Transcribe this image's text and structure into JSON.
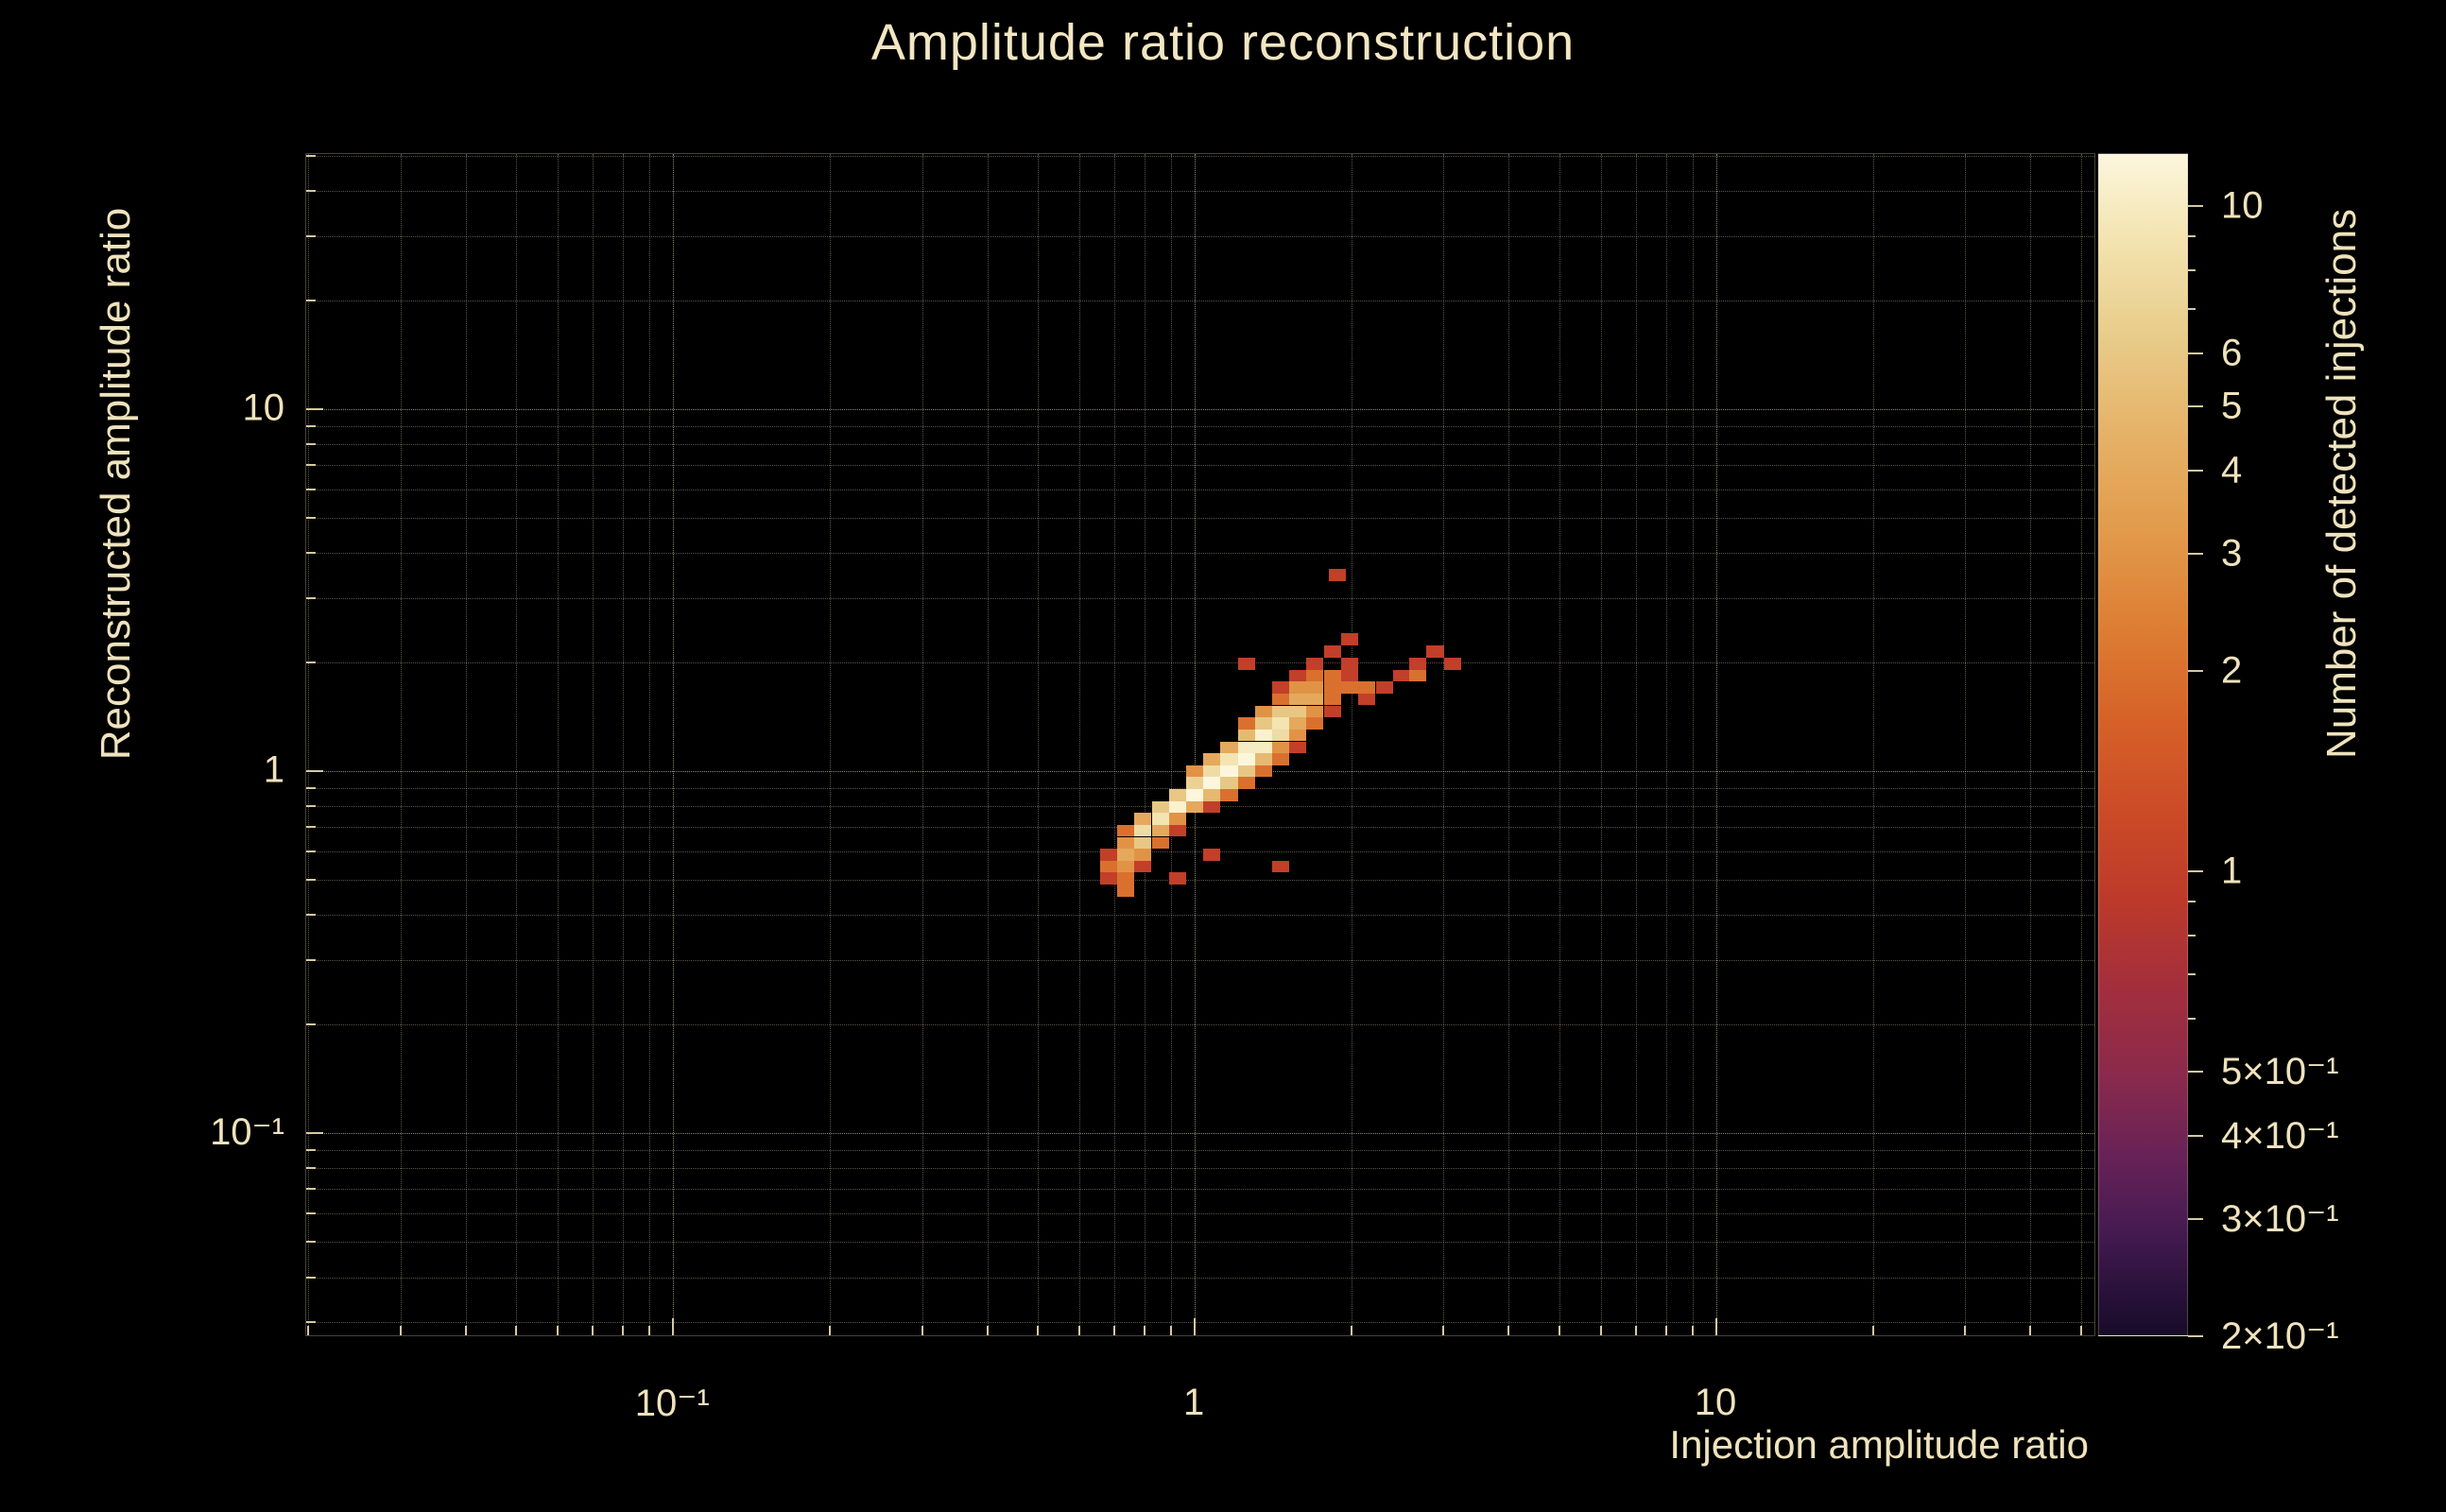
{
  "colors": {
    "background": "#000000",
    "text": "#efe3bd",
    "grid": "#eee2bc",
    "tick": "#d6c9a0"
  },
  "chart_data": {
    "type": "heatmap",
    "title": "Amplitude ratio reconstruction",
    "xlabel": "Injection amplitude ratio",
    "ylabel": "Reconstructed amplitude ratio",
    "zlabel": "Number of detected injections",
    "xscale": "log",
    "yscale": "log",
    "zscale": "log",
    "xlim": [
      0.0198,
      53.5
    ],
    "ylim": [
      0.0273,
      50.7
    ],
    "zlim": [
      0.2,
      12
    ],
    "grid": true,
    "bin_width_decades": 0.033,
    "x_ticks": [
      {
        "v": 0.1,
        "label": "10⁻¹"
      },
      {
        "v": 1,
        "label": "1"
      },
      {
        "v": 10,
        "label": "10"
      }
    ],
    "y_ticks": [
      {
        "v": 10,
        "label": "10"
      },
      {
        "v": 1,
        "label": "1"
      },
      {
        "v": 0.1,
        "label": "10⁻¹"
      }
    ],
    "colorbar_ticks": [
      {
        "v": 10,
        "label": "10"
      },
      {
        "v": 6,
        "label": "6"
      },
      {
        "v": 5,
        "label": "5"
      },
      {
        "v": 4,
        "label": "4"
      },
      {
        "v": 3,
        "label": "3"
      },
      {
        "v": 2,
        "label": "2"
      },
      {
        "v": 1,
        "label": "1"
      },
      {
        "v": 0.5,
        "label": "5×10⁻¹"
      },
      {
        "v": 0.4,
        "label": "4×10⁻¹"
      },
      {
        "v": 0.3,
        "label": "3×10⁻¹"
      },
      {
        "v": 0.2,
        "label": "2×10⁻¹"
      }
    ],
    "palette_stops": [
      [
        0.0,
        "#fcf6dd"
      ],
      [
        0.07,
        "#f3e4b1"
      ],
      [
        0.15,
        "#e9cd8c"
      ],
      [
        0.24,
        "#e5b166"
      ],
      [
        0.32,
        "#e29a4b"
      ],
      [
        0.4,
        "#dd7e33"
      ],
      [
        0.48,
        "#d66128"
      ],
      [
        0.56,
        "#cb4a27"
      ],
      [
        0.63,
        "#bd3a2a"
      ],
      [
        0.7,
        "#a52f3b"
      ],
      [
        0.78,
        "#8a2a4c"
      ],
      [
        0.85,
        "#672257"
      ],
      [
        0.91,
        "#461b52"
      ],
      [
        0.96,
        "#2a123c"
      ],
      [
        1.0,
        "#180b28"
      ]
    ],
    "cells": [
      [
        0.738,
        0.468,
        2
      ],
      [
        0.684,
        0.505,
        1
      ],
      [
        0.738,
        0.505,
        2
      ],
      [
        0.927,
        0.505,
        1
      ],
      [
        0.684,
        0.545,
        2
      ],
      [
        0.738,
        0.545,
        3
      ],
      [
        0.796,
        0.545,
        1
      ],
      [
        1.462,
        0.545,
        1
      ],
      [
        0.684,
        0.588,
        1
      ],
      [
        0.738,
        0.588,
        4
      ],
      [
        0.796,
        0.588,
        3
      ],
      [
        1.079,
        0.588,
        1
      ],
      [
        0.738,
        0.634,
        3
      ],
      [
        0.796,
        0.634,
        6
      ],
      [
        0.859,
        0.634,
        2
      ],
      [
        0.738,
        0.684,
        2
      ],
      [
        0.796,
        0.684,
        8
      ],
      [
        0.859,
        0.684,
        4
      ],
      [
        0.927,
        0.684,
        1
      ],
      [
        0.796,
        0.738,
        4
      ],
      [
        0.859,
        0.738,
        9
      ],
      [
        0.927,
        0.738,
        3
      ],
      [
        0.859,
        0.796,
        6
      ],
      [
        0.927,
        0.796,
        11
      ],
      [
        1.0,
        0.796,
        4
      ],
      [
        1.079,
        0.796,
        1
      ],
      [
        0.927,
        0.859,
        6
      ],
      [
        1.0,
        0.859,
        12
      ],
      [
        1.079,
        0.859,
        5
      ],
      [
        1.164,
        0.859,
        2
      ],
      [
        1.0,
        0.927,
        7
      ],
      [
        1.079,
        0.927,
        12
      ],
      [
        1.164,
        0.927,
        6
      ],
      [
        1.256,
        0.927,
        2
      ],
      [
        1.0,
        1.0,
        3
      ],
      [
        1.079,
        1.0,
        8
      ],
      [
        1.164,
        1.0,
        12
      ],
      [
        1.256,
        1.0,
        6
      ],
      [
        1.355,
        1.0,
        2
      ],
      [
        1.079,
        1.079,
        4
      ],
      [
        1.164,
        1.079,
        9
      ],
      [
        1.256,
        1.079,
        12
      ],
      [
        1.355,
        1.079,
        5
      ],
      [
        1.462,
        1.079,
        2
      ],
      [
        1.164,
        1.164,
        4
      ],
      [
        1.256,
        1.164,
        10
      ],
      [
        1.355,
        1.164,
        10
      ],
      [
        1.462,
        1.164,
        3
      ],
      [
        1.577,
        1.164,
        1
      ],
      [
        1.256,
        1.256,
        5
      ],
      [
        1.355,
        1.256,
        11
      ],
      [
        1.462,
        1.256,
        8
      ],
      [
        1.577,
        1.256,
        3
      ],
      [
        1.256,
        1.355,
        2
      ],
      [
        1.355,
        1.355,
        6
      ],
      [
        1.462,
        1.355,
        9
      ],
      [
        1.577,
        1.355,
        4
      ],
      [
        1.701,
        1.355,
        2
      ],
      [
        1.355,
        1.462,
        3
      ],
      [
        1.462,
        1.462,
        6
      ],
      [
        1.577,
        1.462,
        6
      ],
      [
        1.701,
        1.462,
        3
      ],
      [
        1.835,
        1.462,
        1
      ],
      [
        1.462,
        1.577,
        2
      ],
      [
        1.577,
        1.577,
        4
      ],
      [
        1.701,
        1.577,
        4
      ],
      [
        1.835,
        1.577,
        2
      ],
      [
        2.14,
        1.577,
        1
      ],
      [
        1.462,
        1.701,
        1
      ],
      [
        1.577,
        1.701,
        3
      ],
      [
        1.701,
        1.701,
        3
      ],
      [
        1.835,
        1.701,
        2
      ],
      [
        1.98,
        1.701,
        2
      ],
      [
        2.14,
        1.701,
        2
      ],
      [
        2.31,
        1.701,
        1
      ],
      [
        1.577,
        1.835,
        1
      ],
      [
        1.701,
        1.835,
        2
      ],
      [
        1.835,
        1.835,
        2
      ],
      [
        1.98,
        1.835,
        1
      ],
      [
        2.49,
        1.835,
        1
      ],
      [
        2.68,
        1.835,
        2
      ],
      [
        1.256,
        1.98,
        1
      ],
      [
        1.701,
        1.98,
        1
      ],
      [
        1.98,
        1.98,
        1
      ],
      [
        2.68,
        1.98,
        1
      ],
      [
        3.12,
        1.98,
        1
      ],
      [
        1.835,
        2.14,
        1
      ],
      [
        2.89,
        2.14,
        1
      ],
      [
        1.98,
        2.31,
        1
      ],
      [
        1.875,
        3.48,
        1
      ]
    ]
  }
}
